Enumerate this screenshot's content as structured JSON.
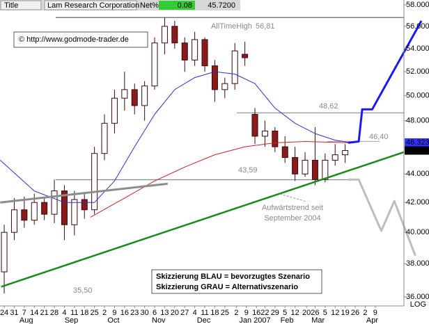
{
  "header": {
    "title_label": "Title",
    "name": "Lam Research Corporation",
    "change_label": "Net%",
    "change": "0.08"
  },
  "watermark": "© http://www.godmode-trader.de",
  "chart_data": {
    "type": "candlestick",
    "log": true,
    "x": [
      0,
      1,
      2,
      3,
      4,
      5,
      6,
      7,
      8,
      9,
      10,
      11,
      12,
      13,
      14,
      15,
      16,
      17,
      18,
      19,
      20,
      21,
      22,
      23,
      24,
      25,
      26,
      27,
      28,
      29,
      30,
      31,
      32,
      33,
      34
    ],
    "open": [
      37.5,
      40,
      41.5,
      40.8,
      42,
      41.2,
      42.8,
      40.5,
      42.2,
      41.5,
      45.5,
      47.8,
      49.8,
      50.5,
      49.2,
      50.8,
      54.5,
      56,
      54.5,
      53,
      54.8,
      52.5,
      50.5,
      51,
      53.5,
      48.5,
      46.8,
      47.2,
      46,
      45.2,
      44,
      45,
      43.6,
      45,
      45.4
    ],
    "high": [
      40.5,
      42.3,
      42.4,
      42.6,
      42.3,
      43.6,
      43.2,
      42.8,
      42.6,
      46,
      48.5,
      50.5,
      52,
      51,
      51.2,
      55,
      56.81,
      56.5,
      55,
      55.5,
      55,
      53,
      51.5,
      54.5,
      54.6,
      49,
      48,
      47.5,
      46.8,
      46,
      45.6,
      47.5,
      45.5,
      46.2,
      46.2
    ],
    "low": [
      36.2,
      39.5,
      40.3,
      40.5,
      40.8,
      40.6,
      39.5,
      39.8,
      40.9,
      41.2,
      45,
      47,
      48.8,
      48.5,
      48,
      50.5,
      53.5,
      54,
      52,
      52.5,
      52,
      49.5,
      49.8,
      50.5,
      52.5,
      46.2,
      46,
      45.6,
      44.8,
      43.5,
      43.8,
      43.2,
      43.4,
      44.6,
      44.8
    ],
    "close": [
      40,
      41.5,
      40.8,
      42,
      41.2,
      42.8,
      40.5,
      42.2,
      41.5,
      45.5,
      47.8,
      49.8,
      50.5,
      49.2,
      50.8,
      54.5,
      56,
      54.5,
      53,
      54.8,
      52.5,
      50.5,
      51,
      53.8,
      53.2,
      46.8,
      47.2,
      46,
      45.2,
      44,
      45,
      43.6,
      45,
      45.4,
      45.72
    ],
    "xlim": [
      -0.42,
      39.86
    ],
    "ylim": [
      35.47,
      58.46
    ],
    "yticks": [
      {
        "value": 36,
        "label": "36.0000"
      },
      {
        "value": 38,
        "label": "38.0000"
      },
      {
        "value": 40,
        "label": "40.0000"
      },
      {
        "value": 42,
        "label": "42.0000"
      },
      {
        "value": 44,
        "label": "44.0000"
      },
      {
        "value": 48,
        "label": "48.0000"
      },
      {
        "value": 50,
        "label": "50.0000"
      },
      {
        "value": 52,
        "label": "52.0000"
      },
      {
        "value": 54,
        "label": "54.0000"
      },
      {
        "value": 56,
        "label": "56.0000"
      },
      {
        "value": 58,
        "label": "58.0000"
      }
    ],
    "xticks": [
      {
        "value": 0,
        "label": "24"
      },
      {
        "value": 1,
        "label": "31"
      },
      {
        "value": 2,
        "label": "7"
      },
      {
        "value": 3,
        "label": "14"
      },
      {
        "value": 4,
        "label": "21"
      },
      {
        "value": 5,
        "label": "28"
      },
      {
        "value": 6,
        "label": "4"
      },
      {
        "value": 7,
        "label": "11"
      },
      {
        "value": 8,
        "label": "18"
      },
      {
        "value": 9,
        "label": "25"
      },
      {
        "value": 10,
        "label": "2"
      },
      {
        "value": 11,
        "label": "9"
      },
      {
        "value": 12,
        "label": "16"
      },
      {
        "value": 13,
        "label": "23"
      },
      {
        "value": 14,
        "label": "30"
      },
      {
        "value": 15,
        "label": "6"
      },
      {
        "value": 16,
        "label": "13"
      },
      {
        "value": 17,
        "label": "20"
      },
      {
        "value": 18,
        "label": "27"
      },
      {
        "value": 19,
        "label": "4"
      },
      {
        "value": 20,
        "label": "11"
      },
      {
        "value": 21,
        "label": "18"
      },
      {
        "value": 22,
        "label": "25"
      },
      {
        "value": 23.15,
        "label": "2"
      },
      {
        "value": 24.15,
        "label": "9"
      },
      {
        "value": 25.15,
        "label": "16"
      },
      {
        "value": 26,
        "label": "22"
      },
      {
        "value": 27,
        "label": "29"
      },
      {
        "value": 28,
        "label": "5"
      },
      {
        "value": 29,
        "label": "12"
      },
      {
        "value": 30.15,
        "label": "20"
      },
      {
        "value": 31,
        "label": "26"
      },
      {
        "value": 32,
        "label": "5"
      },
      {
        "value": 33,
        "label": "12"
      },
      {
        "value": 34,
        "label": "19"
      },
      {
        "value": 35,
        "label": "26"
      },
      {
        "value": 36,
        "label": "2"
      },
      {
        "value": 37,
        "label": "9"
      }
    ],
    "months": [
      {
        "value": 2.2,
        "label": "Aug"
      },
      {
        "value": 6.7,
        "label": "Sep"
      },
      {
        "value": 10.9,
        "label": "Oct"
      },
      {
        "value": 15.4,
        "label": "Nov"
      },
      {
        "value": 19.9,
        "label": "Dec"
      },
      {
        "value": 25,
        "label": "Jan 2007"
      },
      {
        "value": 28.2,
        "label": "Feb"
      },
      {
        "value": 31.3,
        "label": "Mar"
      },
      {
        "value": 36.7,
        "label": "Apr"
      }
    ],
    "lines": [
      {
        "color": "#2f2fc8",
        "width": 1,
        "x": [
          -0.4,
          3,
          6,
          9,
          11,
          13,
          15,
          17,
          19,
          21,
          23,
          25,
          27,
          29,
          31,
          33,
          34.5
        ],
        "values": [
          45,
          42.8,
          42,
          42,
          43.5,
          46,
          48.5,
          50.5,
          51.5,
          52,
          51.8,
          51,
          49,
          47.8,
          47,
          46.5,
          46.32
        ]
      },
      {
        "color": "#cc2222",
        "width": 1,
        "x": [
          8.6,
          12,
          15,
          18,
          21,
          24,
          27,
          30,
          34.5
        ],
        "values": [
          41,
          42.3,
          43.5,
          44.5,
          45.4,
          46,
          46.3,
          46.4,
          46.3
        ]
      },
      {
        "color": "#8c8c8c",
        "width": 3,
        "x": [
          -0.4,
          16.3
        ],
        "values": [
          42,
          43.3
        ]
      },
      {
        "color": "#1a8a1a",
        "width": 2.5,
        "x": [
          -0.3,
          39.86
        ],
        "values": [
          36.6,
          45.6
        ]
      },
      {
        "color": "#1a1aee",
        "width": 3,
        "x": [
          34.3,
          35.35,
          35.7,
          36.7,
          41.6
        ],
        "values": [
          46.3,
          46.4,
          48.9,
          48.9,
          56.5
        ]
      },
      {
        "color": "#bdbdbd",
        "width": 3,
        "x": [
          34.3,
          35.35,
          37.6,
          38.9,
          41
        ],
        "values": [
          43.6,
          43.6,
          40.1,
          42.1,
          38.5
        ]
      }
    ],
    "levels": {
      "values": [
        56.81,
        48.62,
        46.4,
        43.59,
        35.5
      ],
      "value_labels": [
        "56,81",
        "48,62",
        "46,40",
        "43,59",
        "35,50"
      ]
    },
    "ath_label": "AllTimeHigh",
    "trend_note": [
      "Aufwärtstrend seit",
      "September 2004"
    ],
    "legend_box": [
      "Skizzierung BLAU = bevorzugtes Szenario",
      "Skizzierung GRAU = Alternativszenario"
    ],
    "axis_label": "LOG",
    "last_price": {
      "value": 45.72,
      "label": "45.7200"
    },
    "ma_price": {
      "value": 46.32377,
      "label": "46.32377"
    }
  }
}
